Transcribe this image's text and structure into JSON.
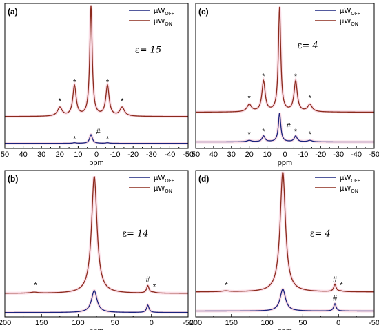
{
  "colors": {
    "off": "#1a237e",
    "on": "#8b2a1c",
    "glow": "#f7c6d6"
  },
  "chart_data": [
    {
      "panel": "(a)",
      "type": "line",
      "xlabel": "ppm",
      "xlim": [
        50,
        -50
      ],
      "xticks": [
        50,
        40,
        30,
        20,
        10,
        0,
        -10,
        -20,
        -30,
        -40,
        -50
      ],
      "annotation": {
        "text": "ε=",
        "value": "15",
        "x": -21,
        "y": 0.66
      },
      "legend": [
        "µW_OFF",
        "µW_ON"
      ],
      "series": [
        {
          "name": "µW_OFF",
          "baseline": 0.035,
          "peaks": [
            {
              "x": 3,
              "h": 0.06,
              "w": 0.9
            },
            {
              "x": 12,
              "h": 0.004,
              "w": 1
            },
            {
              "x": -6,
              "h": 0.004,
              "w": 1
            }
          ]
        },
        {
          "name": "µW_ON",
          "baseline": 0.22,
          "peaks": [
            {
              "x": 3,
              "h": 0.76,
              "w": 0.8
            },
            {
              "x": 12,
              "h": 0.21,
              "w": 1.1
            },
            {
              "x": -6,
              "h": 0.21,
              "w": 1.1
            },
            {
              "x": 20,
              "h": 0.06,
              "w": 1.5
            },
            {
              "x": -14,
              "h": 0.06,
              "w": 1.5
            }
          ]
        }
      ],
      "markers": [
        {
          "text": "*",
          "x": 20,
          "y": 0.31
        },
        {
          "text": "*",
          "x": 12,
          "y": 0.44
        },
        {
          "text": "*",
          "x": -6,
          "y": 0.44
        },
        {
          "text": "*",
          "x": -14,
          "y": 0.31
        },
        {
          "text": "*",
          "x": 12,
          "y": 0.05
        },
        {
          "text": "#",
          "x": -1,
          "y": 0.1
        },
        {
          "text": "*",
          "x": -6,
          "y": 0.05
        }
      ]
    },
    {
      "panel": "(c)",
      "type": "line",
      "xlabel": "ppm",
      "xlim": [
        50,
        -50
      ],
      "xticks": [
        50,
        40,
        30,
        20,
        10,
        0,
        -10,
        -20,
        -30,
        -40,
        -50
      ],
      "annotation": {
        "text": "ε=",
        "value": "4",
        "x": -7,
        "y": 0.69
      },
      "legend": [
        "µW_OFF",
        "µW_ON"
      ],
      "series": [
        {
          "name": "µW_OFF",
          "baseline": 0.045,
          "peaks": [
            {
              "x": 3,
              "h": 0.2,
              "w": 0.8
            },
            {
              "x": 12,
              "h": 0.04,
              "w": 1
            },
            {
              "x": -6,
              "h": 0.04,
              "w": 1
            },
            {
              "x": 20,
              "h": 0.01,
              "w": 1.5
            },
            {
              "x": -14,
              "h": 0.01,
              "w": 1.5
            }
          ]
        },
        {
          "name": "µW_ON",
          "baseline": 0.25,
          "peaks": [
            {
              "x": 3,
              "h": 0.72,
              "w": 0.8
            },
            {
              "x": 12,
              "h": 0.21,
              "w": 1.1
            },
            {
              "x": -6,
              "h": 0.21,
              "w": 1.1
            },
            {
              "x": 20,
              "h": 0.05,
              "w": 1.5
            },
            {
              "x": -14,
              "h": 0.05,
              "w": 1.5
            }
          ]
        }
      ],
      "markers": [
        {
          "text": "*",
          "x": 20,
          "y": 0.33
        },
        {
          "text": "*",
          "x": 12,
          "y": 0.48
        },
        {
          "text": "*",
          "x": -6,
          "y": 0.48
        },
        {
          "text": "*",
          "x": -14,
          "y": 0.33
        },
        {
          "text": "*",
          "x": 20,
          "y": 0.08
        },
        {
          "text": "*",
          "x": 12,
          "y": 0.1
        },
        {
          "text": "#",
          "x": -2,
          "y": 0.14
        },
        {
          "text": "*",
          "x": -6,
          "y": 0.1
        },
        {
          "text": "*",
          "x": -14,
          "y": 0.08
        }
      ]
    },
    {
      "panel": "(b)",
      "type": "line",
      "xlabel": "ppm",
      "xlim": [
        200,
        -50
      ],
      "xticks": [
        200,
        150,
        100,
        50,
        0,
        -50
      ],
      "annotation": {
        "text": "ε=",
        "value": "14",
        "x": 40,
        "y": 0.55
      },
      "legend": [
        "µW_OFF",
        "µW_ON"
      ],
      "series": [
        {
          "name": "µW_OFF",
          "baseline": 0.03,
          "peaks": [
            {
              "x": 78,
              "h": 0.15,
              "w": 4.5
            },
            {
              "x": 5,
              "h": 0.05,
              "w": 2
            }
          ]
        },
        {
          "name": "µW_ON",
          "baseline": 0.16,
          "peaks": [
            {
              "x": 78,
              "h": 0.8,
              "w": 4.5
            },
            {
              "x": 5,
              "h": 0.05,
              "w": 2
            },
            {
              "x": 160,
              "h": 0.007,
              "w": 6
            },
            {
              "x": -3,
              "h": 0.005,
              "w": 4
            }
          ]
        }
      ],
      "markers": [
        {
          "text": "*",
          "x": 158,
          "y": 0.2
        },
        {
          "text": "#",
          "x": 5,
          "y": 0.24
        },
        {
          "text": "*",
          "x": -4,
          "y": 0.19
        }
      ]
    },
    {
      "panel": "(d)",
      "type": "line",
      "xlabel": "ppm",
      "xlim": [
        200,
        -50
      ],
      "xticks": [
        200,
        150,
        100,
        50,
        0,
        -50
      ],
      "annotation": {
        "text": "ε=",
        "value": "4",
        "x": 40,
        "y": 0.55
      },
      "legend": [
        "µW_OFF",
        "µW_ON"
      ],
      "series": [
        {
          "name": "µW_OFF",
          "baseline": 0.04,
          "peaks": [
            {
              "x": 78,
              "h": 0.15,
              "w": 4.5
            },
            {
              "x": 5,
              "h": 0.05,
              "w": 2
            }
          ]
        },
        {
          "name": "µW_ON",
          "baseline": 0.17,
          "peaks": [
            {
              "x": 78,
              "h": 0.82,
              "w": 4.5
            },
            {
              "x": 5,
              "h": 0.05,
              "w": 2
            },
            {
              "x": 158,
              "h": 0.006,
              "w": 6
            },
            {
              "x": -3,
              "h": 0.004,
              "w": 4
            }
          ]
        }
      ],
      "markers": [
        {
          "text": "*",
          "x": 157,
          "y": 0.2
        },
        {
          "text": "#",
          "x": 5,
          "y": 0.24
        },
        {
          "text": "*",
          "x": -4,
          "y": 0.2
        },
        {
          "text": "#",
          "x": 5,
          "y": 0.11
        }
      ]
    }
  ]
}
